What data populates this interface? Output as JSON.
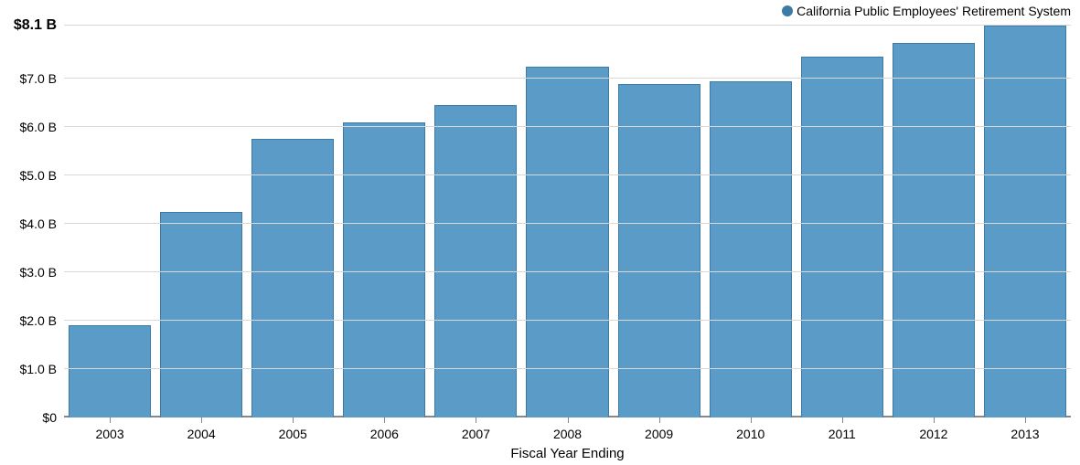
{
  "chart": {
    "type": "bar",
    "legend": {
      "label": "California Public Employees' Retirement System",
      "swatch_color": "#3d7aa6"
    },
    "x_axis": {
      "title": "Fiscal Year Ending",
      "categories": [
        "2003",
        "2004",
        "2005",
        "2006",
        "2007",
        "2008",
        "2009",
        "2010",
        "2011",
        "2012",
        "2013"
      ]
    },
    "y_axis": {
      "min": 0,
      "max": 8.1,
      "ticks": [
        {
          "v": 0.0,
          "label": "$0"
        },
        {
          "v": 1.0,
          "label": "$1.0 B"
        },
        {
          "v": 2.0,
          "label": "$2.0 B"
        },
        {
          "v": 3.0,
          "label": "$3.0 B"
        },
        {
          "v": 4.0,
          "label": "$4.0 B"
        },
        {
          "v": 5.0,
          "label": "$5.0 B"
        },
        {
          "v": 6.0,
          "label": "$6.0 B"
        },
        {
          "v": 7.0,
          "label": "$7.0 B"
        },
        {
          "v": 8.1,
          "label": "$8.1 B",
          "top": true
        }
      ]
    },
    "values": [
      1.9,
      4.25,
      5.75,
      6.1,
      6.45,
      7.25,
      6.9,
      6.95,
      7.45,
      7.75,
      8.1
    ],
    "colors": {
      "bar_fill": "#5b9bc8",
      "bar_border": "#3d7aa6",
      "grid": "#d8d8d8",
      "axis": "#888888",
      "background": "#ffffff",
      "text": "#000000"
    },
    "bar_width_ratio": 0.9,
    "fonts": {
      "tick_size_pt": 14,
      "top_tick_size_pt": 16,
      "axis_title_size_pt": 15,
      "legend_size_pt": 14,
      "family": "Arial"
    }
  }
}
